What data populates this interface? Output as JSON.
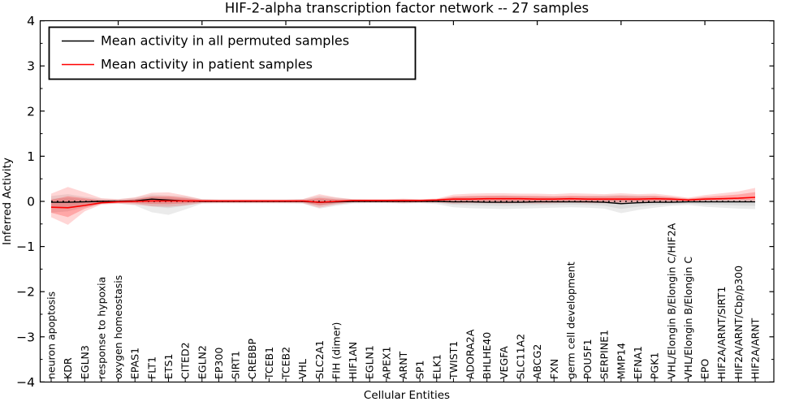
{
  "title": "HIF-2-alpha transcription factor network -- 27 samples",
  "axes": {
    "x_label": "Cellular Entities",
    "y_label": "Inferred Activity",
    "y_tick_labels": [
      "4",
      "3",
      "2",
      "1",
      "0",
      "−1",
      "−2",
      "−3",
      "−4"
    ],
    "y_tick_values": [
      4,
      3,
      2,
      1,
      0,
      -1,
      -2,
      -3,
      -4
    ]
  },
  "legend": {
    "items": [
      {
        "label": "Mean activity in all permuted samples",
        "color": "#000000"
      },
      {
        "label": "Mean activity in patient samples",
        "color": "#ff0000"
      }
    ]
  },
  "chart_data": {
    "type": "line",
    "title": "HIF-2-alpha transcription factor network -- 27 samples",
    "xlabel": "Cellular Entities",
    "ylabel": "Inferred Activity",
    "ylim": [
      -4,
      4
    ],
    "grid": false,
    "legend_position": "upper left",
    "x_tick_label_rotation": 90,
    "zero_line": {
      "color": "#000000",
      "style": "dotted",
      "value": 0
    },
    "categories": [
      "neuron apoptosis",
      "KDR",
      "EGLN3",
      "response to hypoxia",
      "oxygen homeostasis",
      "EPAS1",
      "FLT1",
      "ETS1",
      "CITED2",
      "EGLN2",
      "EP300",
      "SIRT1",
      "CREBBP",
      "TCEB1",
      "TCEB2",
      "VHL",
      "SLC2A1",
      "FIH (dimer)",
      "HIF1AN",
      "EGLN1",
      "APEX1",
      "ARNT",
      "SP1",
      "ELK1",
      "TWIST1",
      "ADORA2A",
      "BHLHE40",
      "VEGFA",
      "SLC11A2",
      "ABCG2",
      "FXN",
      "germ cell development",
      "POU5F1",
      "SERPINE1",
      "MMP14",
      "EFNA1",
      "PGK1",
      "VHL/Elongin B/Elongin C/HIF2A",
      "VHL/Elongin B/Elongin C",
      "EPO",
      "HIF2A/ARNT/SIRT1",
      "HIF2A/ARNT/Cbp/p300",
      "HIF2A/ARNT"
    ],
    "series": [
      {
        "name": "Mean activity in all permuted samples",
        "color": "#000000",
        "values": [
          -0.02,
          -0.02,
          -0.01,
          0,
          0,
          0.01,
          0.05,
          0.03,
          0.01,
          0,
          0,
          0,
          0,
          0,
          0,
          0,
          -0.02,
          -0.01,
          0,
          0,
          0,
          0,
          0,
          0,
          -0.01,
          -0.01,
          -0.02,
          -0.02,
          -0.02,
          -0.01,
          -0.01,
          -0.01,
          -0.01,
          -0.02,
          -0.05,
          -0.03,
          -0.02,
          -0.02,
          -0.01,
          -0.01,
          -0.01,
          -0.01,
          -0.01
        ]
      },
      {
        "name": "Mean activity in patient samples",
        "color": "#ff0000",
        "values": [
          -0.13,
          -0.14,
          -0.09,
          -0.03,
          -0.01,
          0,
          0.01,
          0.01,
          0.01,
          0.01,
          0.01,
          0.01,
          0.01,
          0.01,
          0.01,
          0.01,
          -0.02,
          0,
          0.02,
          0.02,
          0.02,
          0.02,
          0.02,
          0.03,
          0.05,
          0.05,
          0.06,
          0.06,
          0.06,
          0.05,
          0.05,
          0.06,
          0.05,
          0.05,
          0.05,
          0.05,
          0.06,
          0.05,
          0.03,
          0.05,
          0.06,
          0.07,
          0.09
        ]
      }
    ],
    "bands": [
      {
        "name": "permuted samples range",
        "color": "#808080",
        "series_ref": 0,
        "lo": [
          -0.25,
          -0.22,
          -0.13,
          -0.06,
          -0.05,
          -0.09,
          -0.24,
          -0.3,
          -0.18,
          -0.05,
          -0.04,
          -0.04,
          -0.04,
          -0.04,
          -0.04,
          -0.05,
          -0.16,
          -0.1,
          -0.05,
          -0.04,
          -0.04,
          -0.05,
          -0.04,
          -0.06,
          -0.13,
          -0.15,
          -0.16,
          -0.17,
          -0.16,
          -0.15,
          -0.14,
          -0.13,
          -0.14,
          -0.16,
          -0.26,
          -0.19,
          -0.14,
          -0.1,
          -0.08,
          -0.12,
          -0.14,
          -0.16,
          -0.17
        ],
        "hi": [
          0.12,
          0.16,
          0.1,
          0.06,
          0.05,
          0.08,
          0.15,
          0.13,
          0.11,
          0.05,
          0.04,
          0.04,
          0.04,
          0.04,
          0.04,
          0.05,
          0.12,
          0.08,
          0.05,
          0.04,
          0.04,
          0.05,
          0.04,
          0.05,
          0.1,
          0.12,
          0.12,
          0.13,
          0.12,
          0.12,
          0.11,
          0.11,
          0.12,
          0.13,
          0.14,
          0.13,
          0.12,
          0.09,
          0.06,
          0.08,
          0.08,
          0.06,
          0.05
        ]
      },
      {
        "name": "patient samples range",
        "color": "#ff0000",
        "series_ref": 1,
        "lo": [
          -0.35,
          -0.52,
          -0.22,
          -0.07,
          -0.05,
          -0.07,
          -0.11,
          -0.12,
          -0.09,
          -0.04,
          -0.04,
          -0.04,
          -0.04,
          -0.04,
          -0.04,
          -0.04,
          -0.14,
          -0.07,
          -0.03,
          -0.03,
          -0.03,
          -0.04,
          -0.03,
          -0.03,
          -0.05,
          -0.04,
          -0.04,
          -0.05,
          -0.04,
          -0.05,
          -0.04,
          -0.03,
          -0.04,
          -0.04,
          -0.05,
          -0.04,
          -0.03,
          -0.02,
          0,
          0.01,
          0.01,
          0.01,
          -0.01
        ],
        "hi": [
          0.17,
          0.32,
          0.2,
          0.07,
          0.05,
          0.09,
          0.19,
          0.2,
          0.13,
          0.05,
          0.04,
          0.04,
          0.04,
          0.04,
          0.04,
          0.05,
          0.16,
          0.09,
          0.05,
          0.05,
          0.05,
          0.06,
          0.05,
          0.06,
          0.15,
          0.17,
          0.18,
          0.18,
          0.17,
          0.17,
          0.16,
          0.18,
          0.17,
          0.16,
          0.18,
          0.16,
          0.17,
          0.13,
          0.08,
          0.14,
          0.18,
          0.22,
          0.3
        ]
      }
    ]
  }
}
